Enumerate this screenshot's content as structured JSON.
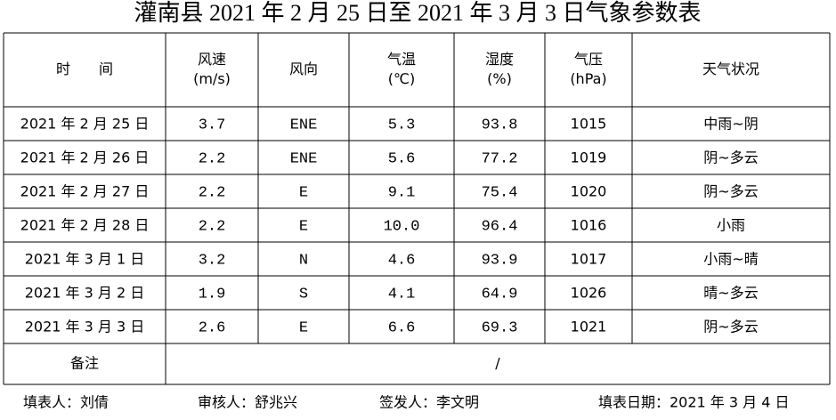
{
  "title": "灌南县 2021 年 2 月 25 日至 2021 年 3 月 3 日气象参数表",
  "table": {
    "header": [
      [
        "时　　间"
      ],
      [
        "风速",
        "(m/s)"
      ],
      [
        "风向"
      ],
      [
        "气温",
        "(℃)"
      ],
      [
        "湿度",
        "(%)"
      ],
      [
        "气压",
        "(hPa)"
      ],
      [
        "天气状况"
      ]
    ],
    "rows": [
      [
        "2021 年 2 月 25 日",
        "3.7",
        "ENE",
        "5.3",
        "93.8",
        "1015",
        "中雨~阴"
      ],
      [
        "2021 年 2 月 26 日",
        "2.2",
        "ENE",
        "5.6",
        "77.2",
        "1019",
        "阴~多云"
      ],
      [
        "2021 年 2 月 27 日",
        "2.2",
        "E",
        "9.1",
        "75.4",
        "1020",
        "阴~多云"
      ],
      [
        "2021 年 2 月 28 日",
        "2.2",
        "E",
        "10.0",
        "96.4",
        "1016",
        "小雨"
      ],
      [
        "2021 年 3 月 1 日",
        "3.2",
        "N",
        "4.6",
        "93.9",
        "1017",
        "小雨~晴"
      ],
      [
        "2021 年 3 月 2 日",
        "1.9",
        "S",
        "4.1",
        "64.9",
        "1026",
        "晴~多云"
      ],
      [
        "2021 年 3 月 3 日",
        "2.6",
        "E",
        "6.6",
        "69.3",
        "1021",
        "阴~多云"
      ]
    ],
    "remark_label": "备注",
    "remark": "/"
  },
  "footer": [
    "填表人：刘倩",
    "审核人：舒兆兴",
    "签发人：李文明",
    "填表日期：2021 年 3 月 4 日"
  ]
}
